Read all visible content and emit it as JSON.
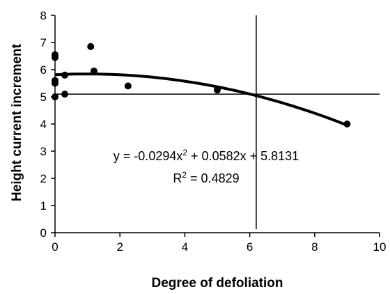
{
  "chart_data": {
    "type": "scatter",
    "xlabel": "Degree of defoliation",
    "ylabel": "Height current increment",
    "xlim": [
      0,
      10
    ],
    "ylim": [
      0,
      8
    ],
    "x_ticks": [
      "0",
      "2",
      "4",
      "6",
      "8",
      "10"
    ],
    "y_ticks": [
      "0",
      "1",
      "2",
      "3",
      "4",
      "5",
      "6",
      "7",
      "8"
    ],
    "points": [
      {
        "x": 0,
        "y": 6.55
      },
      {
        "x": 0,
        "y": 6.45
      },
      {
        "x": 0,
        "y": 5.6
      },
      {
        "x": 0,
        "y": 5.5
      },
      {
        "x": 0,
        "y": 5.0
      },
      {
        "x": 0.3,
        "y": 5.8
      },
      {
        "x": 0.3,
        "y": 5.1
      },
      {
        "x": 1.1,
        "y": 6.85
      },
      {
        "x": 1.2,
        "y": 5.95
      },
      {
        "x": 2.25,
        "y": 5.4
      },
      {
        "x": 5.0,
        "y": 5.25
      },
      {
        "x": 9.0,
        "y": 4.0
      }
    ],
    "trendline": {
      "type": "polynomial",
      "coefficients": {
        "a": -0.0294,
        "b": 0.0582,
        "c": 5.8131
      },
      "x_range": [
        0,
        9
      ]
    },
    "reference_lines": {
      "vertical_x": 6.2,
      "horizontal_y": 5.1
    },
    "annotations": {
      "eq_prefix": "y = -0.0294x",
      "eq_exp": "2",
      "eq_suffix": " + 0.0582x + 5.8131",
      "r2_prefix": "R",
      "r2_exp": "2",
      "r2_suffix": " = 0.4829"
    }
  }
}
